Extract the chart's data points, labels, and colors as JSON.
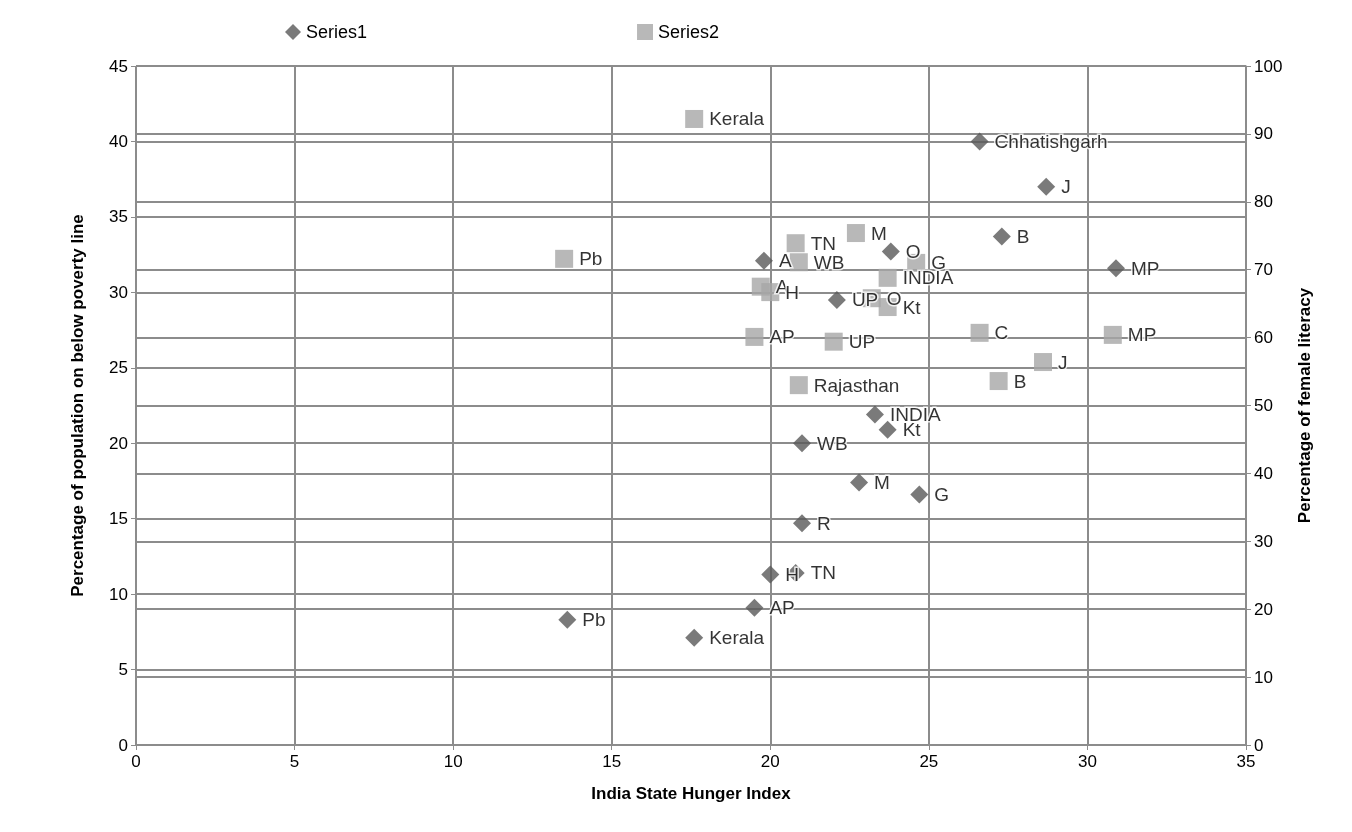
{
  "chart_data": {
    "type": "scatter",
    "xlabel": "India State Hunger Index",
    "ylabel": "Percentage of population on below poverty line",
    "y2label": "Percentage of female literacy",
    "xlim": [
      0,
      35
    ],
    "xticks": [
      0,
      5,
      10,
      15,
      20,
      25,
      30,
      35
    ],
    "ylim": [
      0,
      45
    ],
    "yticks": [
      0,
      5,
      10,
      15,
      20,
      25,
      30,
      35,
      40,
      45
    ],
    "y2lim": [
      0,
      100
    ],
    "y2ticks": [
      0,
      10,
      20,
      30,
      40,
      50,
      60,
      70,
      80,
      90,
      100
    ],
    "grid": true,
    "legend": "top",
    "series": [
      {
        "name": "Series1",
        "color": "#595959",
        "marker": "diamond",
        "x": [
          17.6,
          13.6,
          19.5,
          20.0,
          20.8,
          21.0,
          22.8,
          24.7,
          21.0,
          23.3,
          23.7,
          19.8,
          23.8,
          22.1,
          26.6,
          28.7,
          27.3,
          30.9
        ],
        "values": [
          7.1,
          8.3,
          9.1,
          11.3,
          11.4,
          14.7,
          17.4,
          16.6,
          20.0,
          21.9,
          20.9,
          32.1,
          32.7,
          29.5,
          40.0,
          37.0,
          33.7,
          31.6
        ],
        "value_labels": [
          "Kerala",
          "Pb",
          "AP",
          "H",
          "TN",
          "R",
          "M",
          "G",
          "WB",
          "INDIA",
          "Kt",
          "A",
          "O",
          "UP",
          "Chhatishgarh",
          "J",
          "B",
          "MP"
        ]
      },
      {
        "name": "Series2",
        "color": "#a6a6a6",
        "marker": "square",
        "axis": "y2",
        "x": [
          17.6,
          13.5,
          20.8,
          22.7,
          19.7,
          20.0,
          20.9,
          24.6,
          23.7,
          23.2,
          23.7,
          22.0,
          19.5,
          20.9,
          26.6,
          30.8,
          28.6,
          27.2
        ],
        "values": [
          92.2,
          71.6,
          73.9,
          75.4,
          67.5,
          66.7,
          71.1,
          71.0,
          68.8,
          65.8,
          64.5,
          59.4,
          60.1,
          53.0,
          60.7,
          60.4,
          56.4,
          53.6
        ],
        "value_labels": [
          "Kerala",
          "Pb",
          "TN",
          "M",
          "A",
          "H",
          "WB",
          "G",
          "INDIA",
          "O",
          "Kt",
          "UP",
          "AP",
          "Rajasthan",
          "C",
          "MP",
          "J",
          "B"
        ]
      }
    ]
  }
}
